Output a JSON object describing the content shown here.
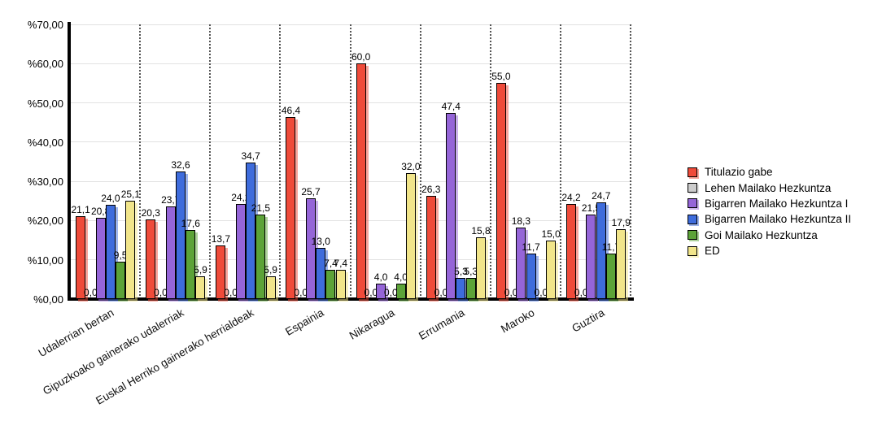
{
  "chart_data": {
    "type": "bar",
    "title": "",
    "categories": [
      "Udalerrian bertan",
      "Gipuzkoako gainerako udalerriak",
      "Euskal Herriko gainerako herrialdeak",
      "Espainia",
      "Nikaragua",
      "Errumania",
      "Maroko",
      "Guztira"
    ],
    "series": [
      {
        "name": "Titulazio gabe",
        "color": "#EF4B3A",
        "values": [
          21.1,
          20.3,
          13.7,
          46.4,
          60.0,
          26.3,
          55.0,
          24.2
        ]
      },
      {
        "name": "Lehen Mailako Hezkuntza",
        "color": "#CCCCCC",
        "values": [
          0.0,
          0.0,
          0.0,
          0.0,
          0.0,
          0.0,
          0.0,
          0.0
        ]
      },
      {
        "name": "Bigarren Mailako Hezkuntza I",
        "color": "#9565D8",
        "values": [
          20.8,
          23.7,
          24.2,
          25.7,
          4.0,
          47.4,
          18.3,
          21.5
        ]
      },
      {
        "name": "Bigarren Mailako Hezkuntza II",
        "color": "#3E6CDC",
        "values": [
          24.0,
          32.6,
          34.7,
          13.0,
          0.0,
          5.3,
          11.7,
          24.7
        ]
      },
      {
        "name": "Goi Mailako Hezkuntza",
        "color": "#5CA338",
        "values": [
          9.5,
          17.6,
          21.5,
          7.4,
          4.0,
          5.3,
          0.0,
          11.7
        ]
      },
      {
        "name": "ED",
        "color": "#F1E58A",
        "values": [
          25.1,
          5.9,
          5.9,
          7.4,
          32.0,
          15.8,
          15.0,
          17.9
        ]
      }
    ],
    "ylim": [
      0,
      70
    ],
    "ytick_step": 10,
    "ytick_labels": [
      "%0,00",
      "%10,00",
      "%20,00",
      "%30,00",
      "%40,00",
      "%50,00",
      "%60,00",
      "%70,00"
    ],
    "value_label_decimal_separator": ",",
    "grid": true,
    "group_separators": "dotted",
    "legend_position": "right",
    "value_labels": true,
    "axis_color": "#000000",
    "gridline_color": "#e2e2e2",
    "background_color": "#ffffff"
  }
}
